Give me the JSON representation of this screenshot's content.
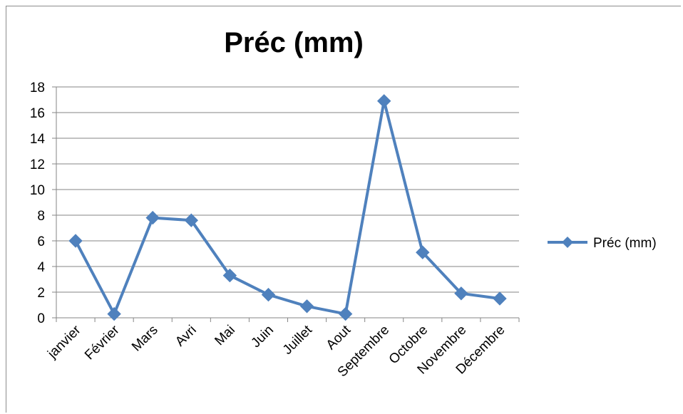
{
  "chart_data": {
    "type": "line",
    "title": "Préc (mm)",
    "xlabel": "",
    "ylabel": "",
    "categories": [
      "janvier",
      "Février",
      "Mars",
      "Avri",
      "Mai",
      "Juin",
      "Juillet",
      "Aout",
      "Septembre",
      "Octobre",
      "Novembre",
      "Décembre"
    ],
    "series": [
      {
        "name": "Préc (mm)",
        "values": [
          6.0,
          0.3,
          7.8,
          7.6,
          3.3,
          1.8,
          0.9,
          0.3,
          16.9,
          5.1,
          1.9,
          1.5
        ]
      }
    ],
    "ylim": [
      0,
      18
    ],
    "yticks": [
      0,
      2,
      4,
      6,
      8,
      10,
      12,
      14,
      16,
      18
    ],
    "grid": true,
    "legend_position": "right",
    "colors": {
      "series": "#4f81bd",
      "grid": "#868686",
      "axis": "#868686"
    }
  }
}
